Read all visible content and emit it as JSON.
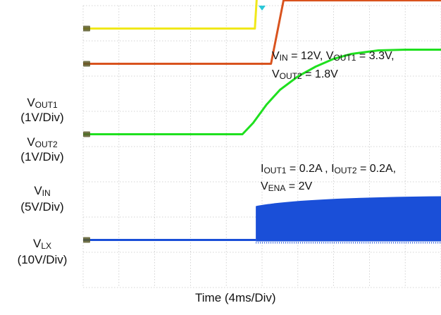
{
  "chart_data": {
    "type": "line",
    "xlabel": "Time (4ms/Div)",
    "x_divisions": 10,
    "y_divisions": 8,
    "x_unit": "ms",
    "grid": true,
    "trigger_marker_x_ms": 20,
    "series": [
      {
        "name_main": "V",
        "name_sub": "OUT1",
        "scale": "(1V/Div)",
        "color": "#f0e81a",
        "baseline_div": 7.35,
        "points": [
          [
            0,
            0
          ],
          [
            19.2,
            0
          ],
          [
            20.0,
            3.3
          ],
          [
            40,
            3.3
          ]
        ],
        "unit": "V"
      },
      {
        "name_main": "V",
        "name_sub": "OUT2",
        "scale": "(1V/Div)",
        "color": "#d9531e",
        "baseline_div": 6.35,
        "points": [
          [
            0,
            0
          ],
          [
            21.0,
            0
          ],
          [
            22.4,
            1.8
          ],
          [
            40,
            1.8
          ]
        ],
        "unit": "V"
      },
      {
        "name_main": "V",
        "name_sub": "IN",
        "scale": "(5V/Div)",
        "color": "#1fe01f",
        "baseline_div": 4.35,
        "points": [
          [
            0,
            0
          ],
          [
            17.8,
            0
          ],
          [
            19,
            1.6
          ],
          [
            20.5,
            4.2
          ],
          [
            22,
            6.3
          ],
          [
            24,
            8.2
          ],
          [
            26,
            9.6
          ],
          [
            28,
            10.7
          ],
          [
            30,
            11.4
          ],
          [
            33,
            11.9
          ],
          [
            36,
            12
          ],
          [
            40,
            12
          ]
        ],
        "unit": "V"
      },
      {
        "name_main": "V",
        "name_sub": "LX",
        "scale": "(10V/Div)",
        "color": "#1a4fd8",
        "baseline_div": 1.35,
        "points": [
          [
            0,
            0
          ],
          [
            19.3,
            0
          ],
          [
            19.3,
            12
          ],
          [
            40,
            12
          ]
        ],
        "unit": "V"
      }
    ],
    "annotations": [
      {
        "text_main1": "V",
        "text_sub1": "IN",
        "text_rest1": " = 12V, V",
        "text_sub2": "OUT1",
        "text_rest2": " = 3.3V,"
      },
      {
        "text_main1": "V",
        "text_sub1": "OUT2",
        "text_rest1": " = 1.8V"
      },
      {
        "text_main1": "I",
        "text_sub1": "OUT1",
        "text_rest1": " = 0.2A , I",
        "text_sub2": "OUT2",
        "text_rest2": " = 0.2A,"
      },
      {
        "text_main1": "V",
        "text_sub1": "ENA",
        "text_rest1": " = 2V"
      }
    ]
  }
}
